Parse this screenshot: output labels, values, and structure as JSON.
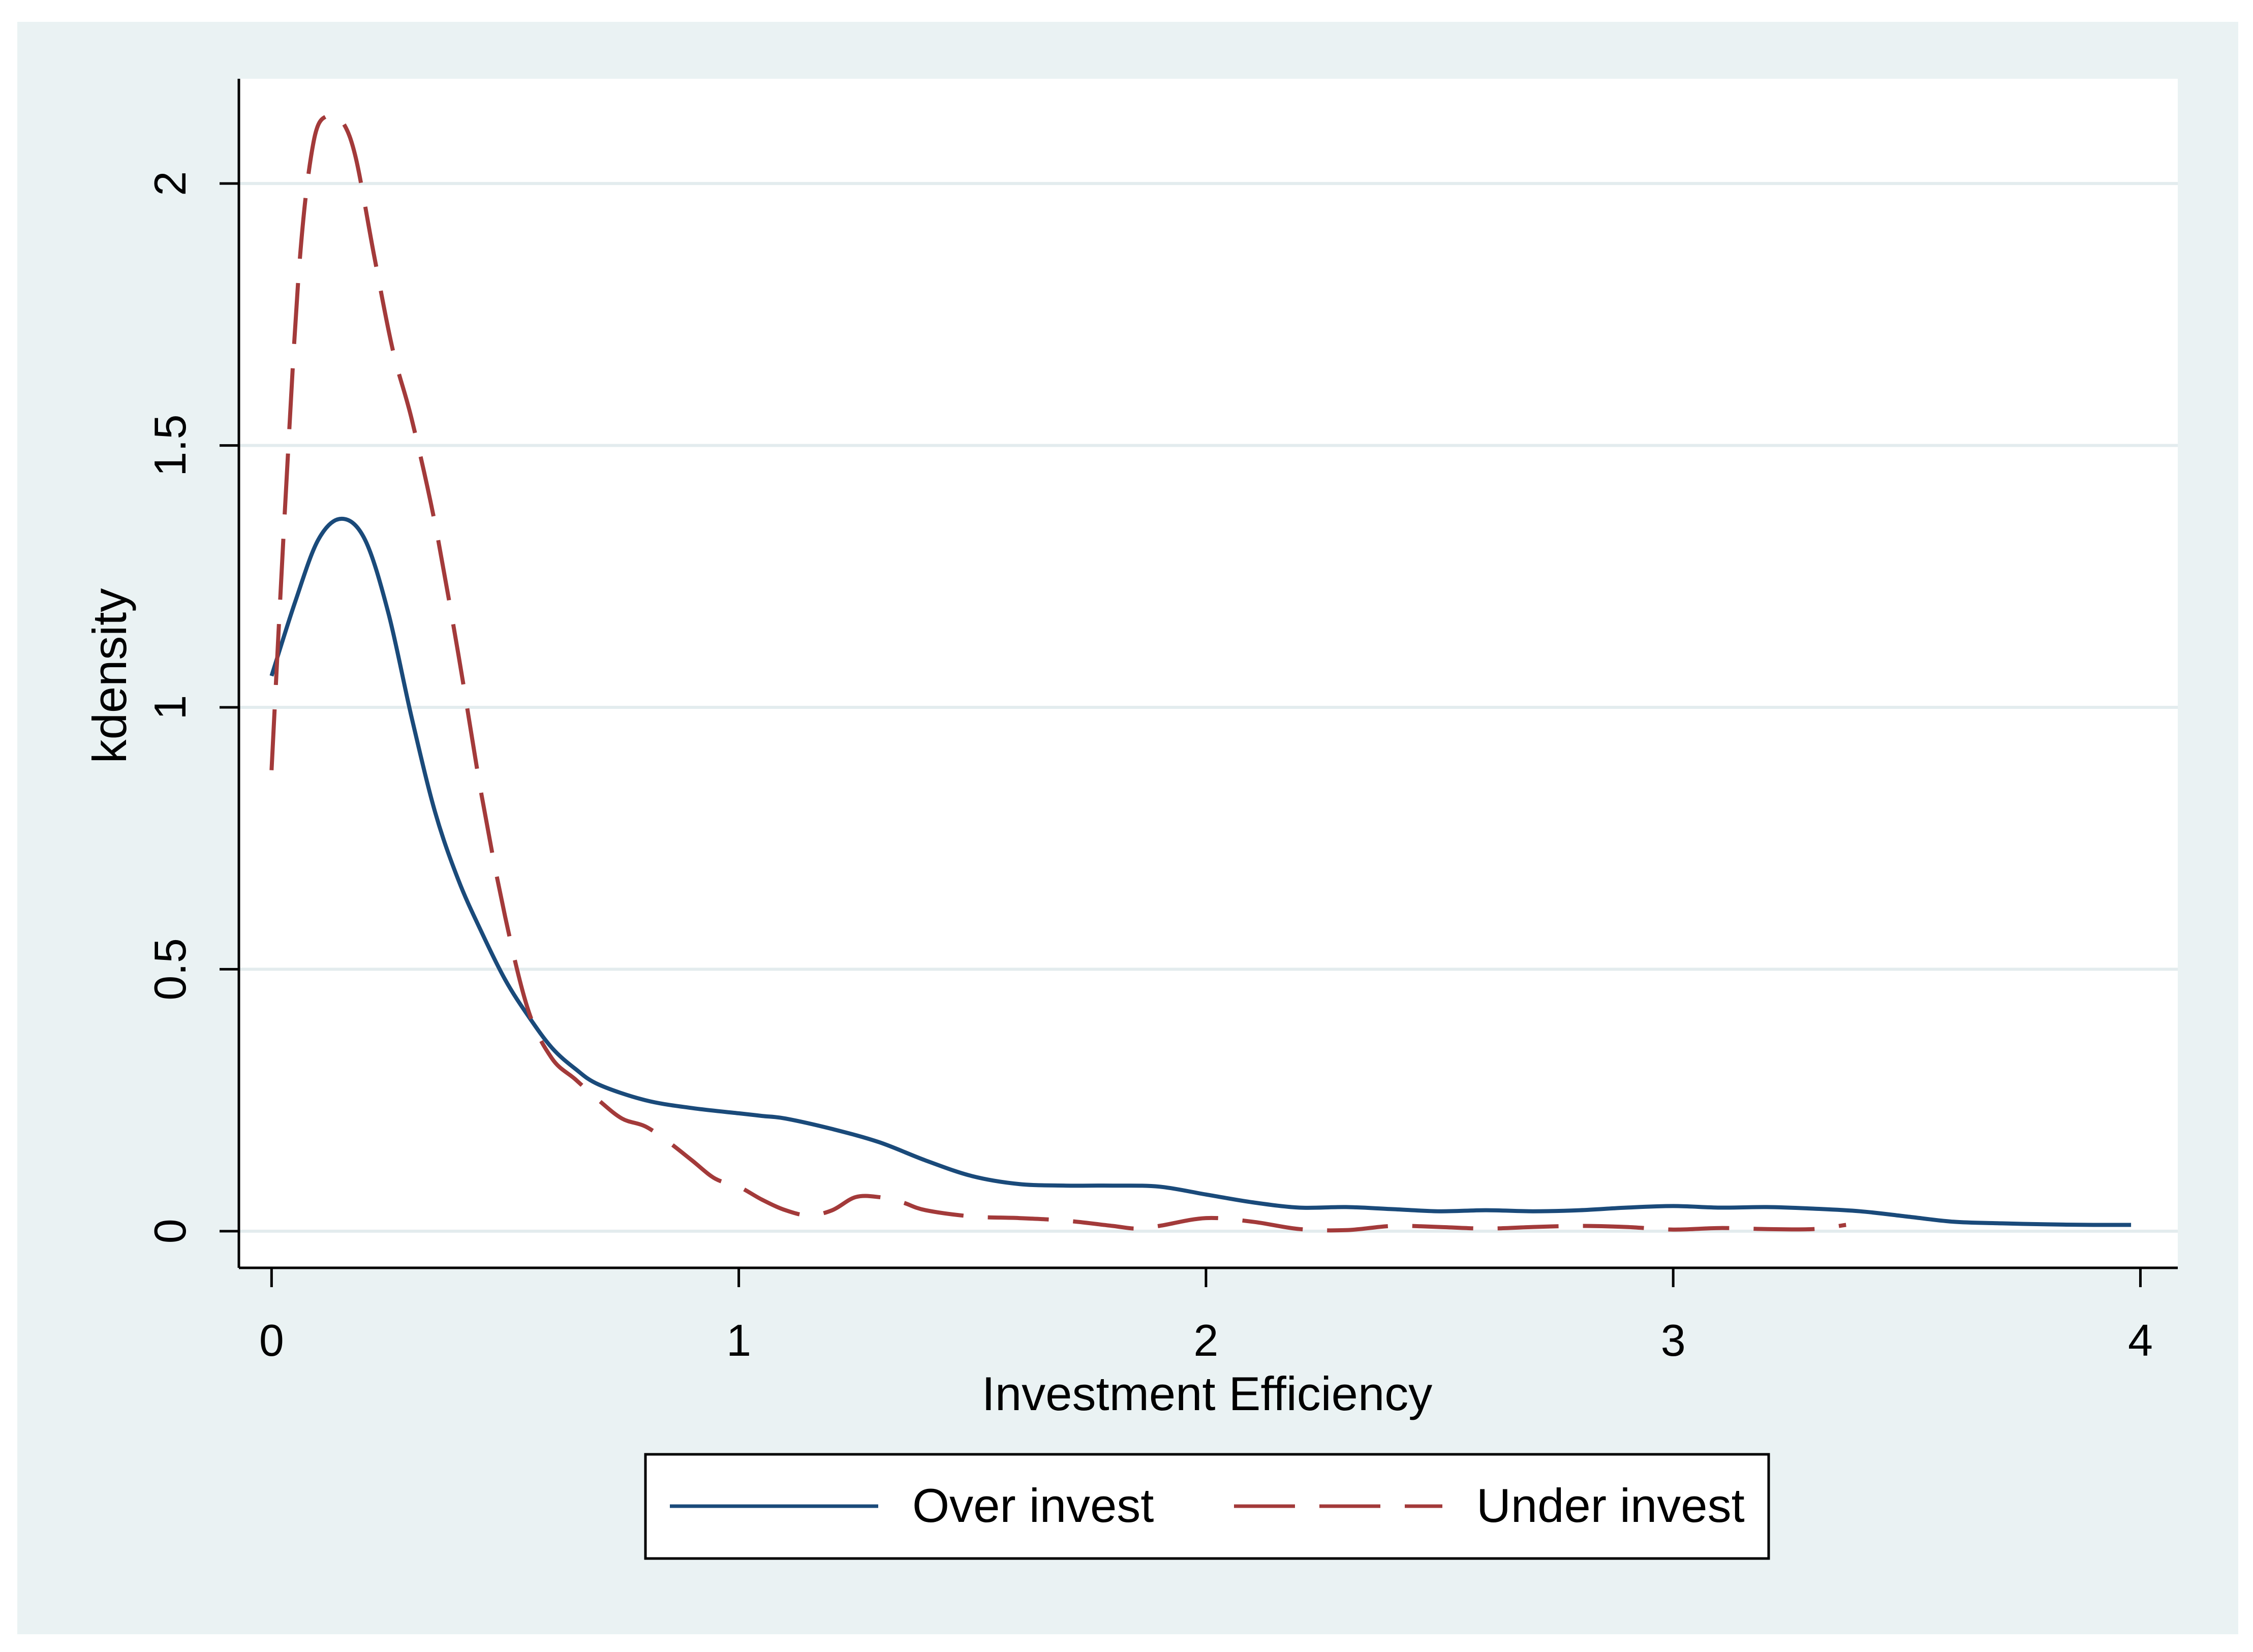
{
  "chart_data": {
    "type": "line",
    "title": "",
    "xlabel": "Investment Efficiency",
    "ylabel": "kdensity",
    "xlim": [
      -0.07,
      4.08
    ],
    "ylim": [
      -0.07,
      2.2
    ],
    "xticks": [
      0,
      1,
      2,
      3,
      4
    ],
    "xtick_labels": [
      "0",
      "1",
      "2",
      "3",
      "4"
    ],
    "yticks": [
      0,
      0.5,
      1,
      1.5,
      2
    ],
    "ytick_labels": [
      "0",
      "0.5",
      "1",
      "1.5",
      "2"
    ],
    "grid": "horizontal",
    "legend": "bottom",
    "series": [
      {
        "name": "Over invest",
        "style": "solid",
        "color": "#1a4a7a",
        "x": [
          0.0,
          0.05,
          0.1,
          0.15,
          0.2,
          0.25,
          0.3,
          0.35,
          0.4,
          0.45,
          0.5,
          0.55,
          0.6,
          0.65,
          0.7,
          0.8,
          0.9,
          1.0,
          1.05,
          1.1,
          1.2,
          1.3,
          1.4,
          1.5,
          1.6,
          1.7,
          1.8,
          1.9,
          2.0,
          2.1,
          2.2,
          2.3,
          2.4,
          2.5,
          2.6,
          2.7,
          2.8,
          2.9,
          3.0,
          3.1,
          3.2,
          3.3,
          3.4,
          3.5,
          3.6,
          3.7,
          3.8,
          3.9,
          3.98
        ],
        "y": [
          1.06,
          1.2,
          1.32,
          1.36,
          1.32,
          1.18,
          0.98,
          0.8,
          0.67,
          0.57,
          0.48,
          0.41,
          0.35,
          0.31,
          0.28,
          0.25,
          0.235,
          0.225,
          0.22,
          0.215,
          0.195,
          0.17,
          0.135,
          0.105,
          0.09,
          0.087,
          0.087,
          0.085,
          0.07,
          0.055,
          0.045,
          0.046,
          0.042,
          0.038,
          0.04,
          0.038,
          0.04,
          0.045,
          0.048,
          0.045,
          0.046,
          0.043,
          0.038,
          0.028,
          0.018,
          0.015,
          0.013,
          0.012,
          0.012
        ]
      },
      {
        "name": "Under invest",
        "style": "dashed",
        "color": "#a33a3a",
        "x": [
          0.0,
          0.03,
          0.06,
          0.09,
          0.12,
          0.15,
          0.18,
          0.22,
          0.26,
          0.3,
          0.35,
          0.4,
          0.45,
          0.5,
          0.55,
          0.6,
          0.65,
          0.7,
          0.75,
          0.8,
          0.85,
          0.9,
          0.95,
          1.0,
          1.05,
          1.1,
          1.15,
          1.2,
          1.25,
          1.3,
          1.35,
          1.4,
          1.5,
          1.6,
          1.7,
          1.8,
          1.85,
          1.9,
          2.0,
          2.1,
          2.2,
          2.3,
          2.4,
          2.5,
          2.6,
          2.7,
          2.8,
          2.9,
          3.0,
          3.1,
          3.2,
          3.3,
          3.37
        ],
        "y": [
          0.88,
          1.4,
          1.85,
          2.08,
          2.13,
          2.12,
          2.05,
          1.86,
          1.68,
          1.55,
          1.35,
          1.1,
          0.83,
          0.6,
          0.42,
          0.33,
          0.29,
          0.25,
          0.215,
          0.2,
          0.17,
          0.135,
          0.1,
          0.085,
          0.06,
          0.04,
          0.03,
          0.04,
          0.065,
          0.065,
          0.055,
          0.04,
          0.028,
          0.025,
          0.02,
          0.01,
          0.005,
          0.01,
          0.025,
          0.018,
          0.004,
          0.002,
          0.01,
          0.008,
          0.005,
          0.008,
          0.01,
          0.008,
          0.003,
          0.006,
          0.004,
          0.004,
          0.012
        ]
      }
    ]
  }
}
